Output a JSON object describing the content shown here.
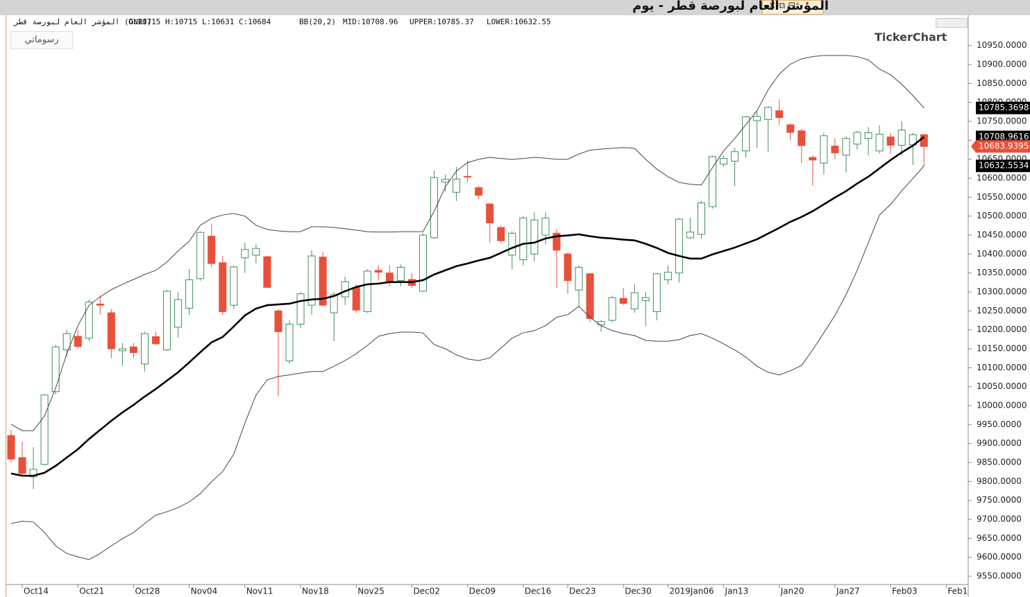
{
  "window": {
    "title": "المؤشر العام لبورصة قطر - يوم"
  },
  "header": {
    "symbol": "المؤشر العام لبورصة قطر (GNRI)",
    "ohlc": "O:10715 H:10715 L:10631 C:10684",
    "indicator": "BB(20,2)",
    "mid": "MID:10708.96",
    "upper": "UPPER:10785.37",
    "lower": "LOWER:10632.55"
  },
  "toolbar": {
    "drawings": "رسوماتي"
  },
  "watermark": "TickerChart",
  "chart_data": {
    "type": "candlestick",
    "categories": [
      null,
      "Oct14",
      null,
      null,
      null,
      null,
      "Oct21",
      null,
      null,
      null,
      null,
      "Oct28",
      null,
      null,
      null,
      null,
      "Nov04",
      null,
      null,
      null,
      null,
      "Nov11",
      null,
      null,
      null,
      null,
      "Nov18",
      null,
      null,
      null,
      null,
      "Nov25",
      null,
      null,
      null,
      null,
      "Dec02",
      null,
      null,
      null,
      null,
      "Dec09",
      null,
      null,
      null,
      null,
      "Dec16",
      null,
      null,
      null,
      "Dec23",
      null,
      null,
      null,
      null,
      "Dec30",
      null,
      null,
      null,
      "2019Jan06",
      null,
      null,
      null,
      null,
      "Jan13",
      null,
      null,
      null,
      null,
      "Jan20",
      null,
      null,
      null,
      null,
      "Jan27",
      null,
      null,
      null,
      null,
      "Feb03",
      null,
      null,
      null,
      null,
      "Feb1"
    ],
    "open": [
      9921,
      9863,
      9812,
      9845,
      10037,
      10147,
      10183,
      10178,
      10268,
      10245,
      10145,
      10155,
      10110,
      10182,
      10147,
      10207,
      10257,
      10335,
      10447,
      10377,
      10265,
      10390,
      10397,
      10393,
      10250,
      10118,
      10215,
      10265,
      10392,
      10245,
      10287,
      10312,
      10248,
      10357,
      10350,
      10330,
      10333,
      10302,
      10443,
      10590,
      10563,
      10605,
      10575,
      10532,
      10470,
      10397,
      10385,
      10400,
      10450,
      10455,
      10400,
      10305,
      10348,
      10213,
      10225,
      10283,
      10255,
      10277,
      10248,
      10332,
      10350,
      10443,
      10452,
      10525,
      10637,
      10645,
      10672,
      10752,
      10755,
      10778,
      10741,
      10725,
      10655,
      10640,
      10685,
      10661,
      10690,
      10705,
      10672,
      10709,
      10687,
      10688,
      10715,
      null,
      null
    ],
    "high": [
      9935,
      9905,
      9890,
      10030,
      10160,
      10200,
      10200,
      10280,
      10290,
      10255,
      10165,
      10165,
      10195,
      10195,
      10305,
      10300,
      10360,
      10460,
      10480,
      10395,
      10370,
      10430,
      10425,
      10395,
      10255,
      10225,
      10300,
      10410,
      10405,
      10300,
      10340,
      10320,
      10360,
      10370,
      10370,
      10372,
      10350,
      10455,
      10620,
      10610,
      10630,
      10645,
      10580,
      10535,
      10475,
      10460,
      10500,
      10510,
      10510,
      10465,
      10405,
      10370,
      10350,
      10225,
      10290,
      10310,
      10320,
      10300,
      10350,
      10370,
      10495,
      10495,
      10540,
      10660,
      10660,
      10680,
      10765,
      10780,
      10790,
      10808,
      10745,
      10730,
      10660,
      10720,
      10705,
      10710,
      10725,
      10735,
      10740,
      10720,
      10750,
      10720,
      10715,
      null,
      null
    ],
    "low": [
      9850,
      9815,
      9780,
      9842,
      10030,
      10130,
      10150,
      10170,
      10240,
      10125,
      10105,
      10125,
      10090,
      10160,
      10145,
      10180,
      10240,
      10330,
      10365,
      10240,
      10255,
      10350,
      10375,
      10310,
      10025,
      10110,
      10205,
      10240,
      10262,
      10170,
      10265,
      10245,
      10245,
      10330,
      10315,
      10315,
      10310,
      10300,
      10440,
      10565,
      10540,
      10590,
      10545,
      10430,
      10430,
      10360,
      10370,
      10380,
      10425,
      10310,
      10295,
      10260,
      10220,
      10195,
      10220,
      10265,
      10245,
      10210,
      10225,
      10320,
      10325,
      10440,
      10440,
      10520,
      10630,
      10580,
      10655,
      10680,
      10670,
      10740,
      10700,
      10640,
      10580,
      10610,
      10650,
      10615,
      10675,
      10660,
      10665,
      10665,
      10660,
      10635,
      10631,
      null,
      null
    ],
    "close": [
      9859,
      9821,
      9832,
      10028,
      10155,
      10190,
      10156,
      10273,
      10265,
      10150,
      10150,
      10140,
      10190,
      10163,
      10302,
      10280,
      10332,
      10457,
      10375,
      10248,
      10366,
      10412,
      10415,
      10312,
      10195,
      10215,
      10295,
      10395,
      10265,
      10293,
      10327,
      10252,
      10355,
      10352,
      10325,
      10365,
      10317,
      10450,
      10602,
      10597,
      10598,
      10603,
      10555,
      10482,
      10435,
      10455,
      10495,
      10490,
      10495,
      10410,
      10330,
      10365,
      10230,
      10222,
      10285,
      10270,
      10298,
      10285,
      10348,
      10352,
      10492,
      10458,
      10535,
      10657,
      10652,
      10670,
      10762,
      10763,
      10787,
      10760,
      10721,
      10686,
      10648,
      10712,
      10667,
      10705,
      10721,
      10720,
      10716,
      10687,
      10727,
      10715,
      10683.9395,
      null,
      null
    ],
    "up_color": "#3c8f5a",
    "down_color": "#e8503a",
    "bands": [
      {
        "name": "UPPER",
        "color": "#444444",
        "width": 1,
        "values": [
          9951,
          9934,
          9934,
          9973,
          10046,
          10137,
          10211,
          10265,
          10287,
          10306,
          10320,
          10333,
          10346,
          10357,
          10379,
          10408,
          10434,
          10476,
          10494,
          10503,
          10507,
          10500,
          10476,
          10465,
          10461,
          10459,
          10459,
          10472,
          10472,
          10470,
          10467,
          10463,
          10459,
          10458,
          10458,
          10459,
          10459,
          10459,
          10513,
          10577,
          10619,
          10641,
          10650,
          10655,
          10652,
          10650,
          10652,
          10655,
          10653,
          10650,
          10650,
          10664,
          10674,
          10677,
          10679,
          10681,
          10679,
          10650,
          10624,
          10604,
          10589,
          10584,
          10582,
          10628,
          10672,
          10705,
          10741,
          10778,
          10833,
          10875,
          10901,
          10915,
          10921,
          10924,
          10924,
          10924,
          10921,
          10912,
          10888,
          10873,
          10848,
          10818,
          10785.3698,
          null,
          null
        ]
      },
      {
        "name": "MID",
        "color": "#000000",
        "width": 2.6,
        "values": [
          9821,
          9815,
          9815,
          9823,
          9841,
          9863,
          9885,
          9912,
          9936,
          9960,
          9982,
          10002,
          10024,
          10044,
          10066,
          10088,
          10114,
          10141,
          10167,
          10181,
          10209,
          10238,
          10256,
          10265,
          10267,
          10269,
          10276,
          10280,
          10282,
          10289,
          10302,
          10313,
          10320,
          10322,
          10326,
          10326,
          10326,
          10331,
          10346,
          10357,
          10368,
          10375,
          10383,
          10390,
          10403,
          10416,
          10427,
          10430,
          10441,
          10447,
          10449,
          10452,
          10447,
          10443,
          10441,
          10438,
          10436,
          10427,
          10416,
          10403,
          10395,
          10388,
          10388,
          10399,
          10408,
          10417,
          10428,
          10439,
          10454,
          10469,
          10485,
          10498,
          10513,
          10531,
          10549,
          10566,
          10586,
          10604,
          10626,
          10648,
          10668,
          10686,
          10708.9616,
          null,
          null
        ]
      },
      {
        "name": "LOWER",
        "color": "#444444",
        "width": 1,
        "values": [
          9689,
          9695,
          9693,
          9665,
          9630,
          9610,
          9601,
          9594,
          9610,
          9630,
          9649,
          9665,
          9689,
          9711,
          9720,
          9731,
          9746,
          9768,
          9799,
          9826,
          9872,
          9954,
          10028,
          10068,
          10077,
          10081,
          10086,
          10090,
          10090,
          10104,
          10119,
          10137,
          10159,
          10183,
          10190,
          10194,
          10194,
          10192,
          10161,
          10150,
          10134,
          10123,
          10119,
          10126,
          10152,
          10178,
          10192,
          10198,
          10211,
          10233,
          10240,
          10262,
          10233,
          10211,
          10198,
          10190,
          10185,
          10172,
          10170,
          10170,
          10174,
          10185,
          10190,
          10178,
          10163,
          10147,
          10128,
          10104,
          10088,
          10081,
          10092,
          10106,
          10147,
          10192,
          10238,
          10293,
          10357,
          10430,
          10503,
          10531,
          10567,
          10599,
          10632.5534,
          null,
          null
        ]
      }
    ],
    "ylim": [
      9528,
      11030
    ],
    "yticks": [
      {
        "value": 9550,
        "label": "9550.0000"
      },
      {
        "value": 9600,
        "label": "9600.0000"
      },
      {
        "value": 9650,
        "label": "9650.0000"
      },
      {
        "value": 9700,
        "label": "9700.0000"
      },
      {
        "value": 9750,
        "label": "9750.0000"
      },
      {
        "value": 9800,
        "label": "9800.0000"
      },
      {
        "value": 9850,
        "label": "9850.0000"
      },
      {
        "value": 9900,
        "label": "9900.0000"
      },
      {
        "value": 9950,
        "label": "9950.0000"
      },
      {
        "value": 10000,
        "label": "10000.0000"
      },
      {
        "value": 10050,
        "label": "10050.0000"
      },
      {
        "value": 10100,
        "label": "10100.0000"
      },
      {
        "value": 10150,
        "label": "10150.0000"
      },
      {
        "value": 10200,
        "label": "10200.0000"
      },
      {
        "value": 10250,
        "label": "10250.0000"
      },
      {
        "value": 10300,
        "label": "10300.0000"
      },
      {
        "value": 10350,
        "label": "10350.0000"
      },
      {
        "value": 10400,
        "label": "10400.0000"
      },
      {
        "value": 10450,
        "label": "10450.0000"
      },
      {
        "value": 10500,
        "label": "10500.0000"
      },
      {
        "value": 10550,
        "label": "10550.0000"
      },
      {
        "value": 10600,
        "label": "10600.0000"
      },
      {
        "value": 10650,
        "label": "10650.0000"
      },
      {
        "value": 10700,
        "label": "10700.0000"
      },
      {
        "value": 10750,
        "label": "10750.0000"
      },
      {
        "value": 10800,
        "label": "10800.0000"
      },
      {
        "value": 10850,
        "label": "10850.0000"
      },
      {
        "value": 10900,
        "label": "10900.0000"
      },
      {
        "value": 10950,
        "label": "10950.0000"
      }
    ],
    "grid": false
  }
}
